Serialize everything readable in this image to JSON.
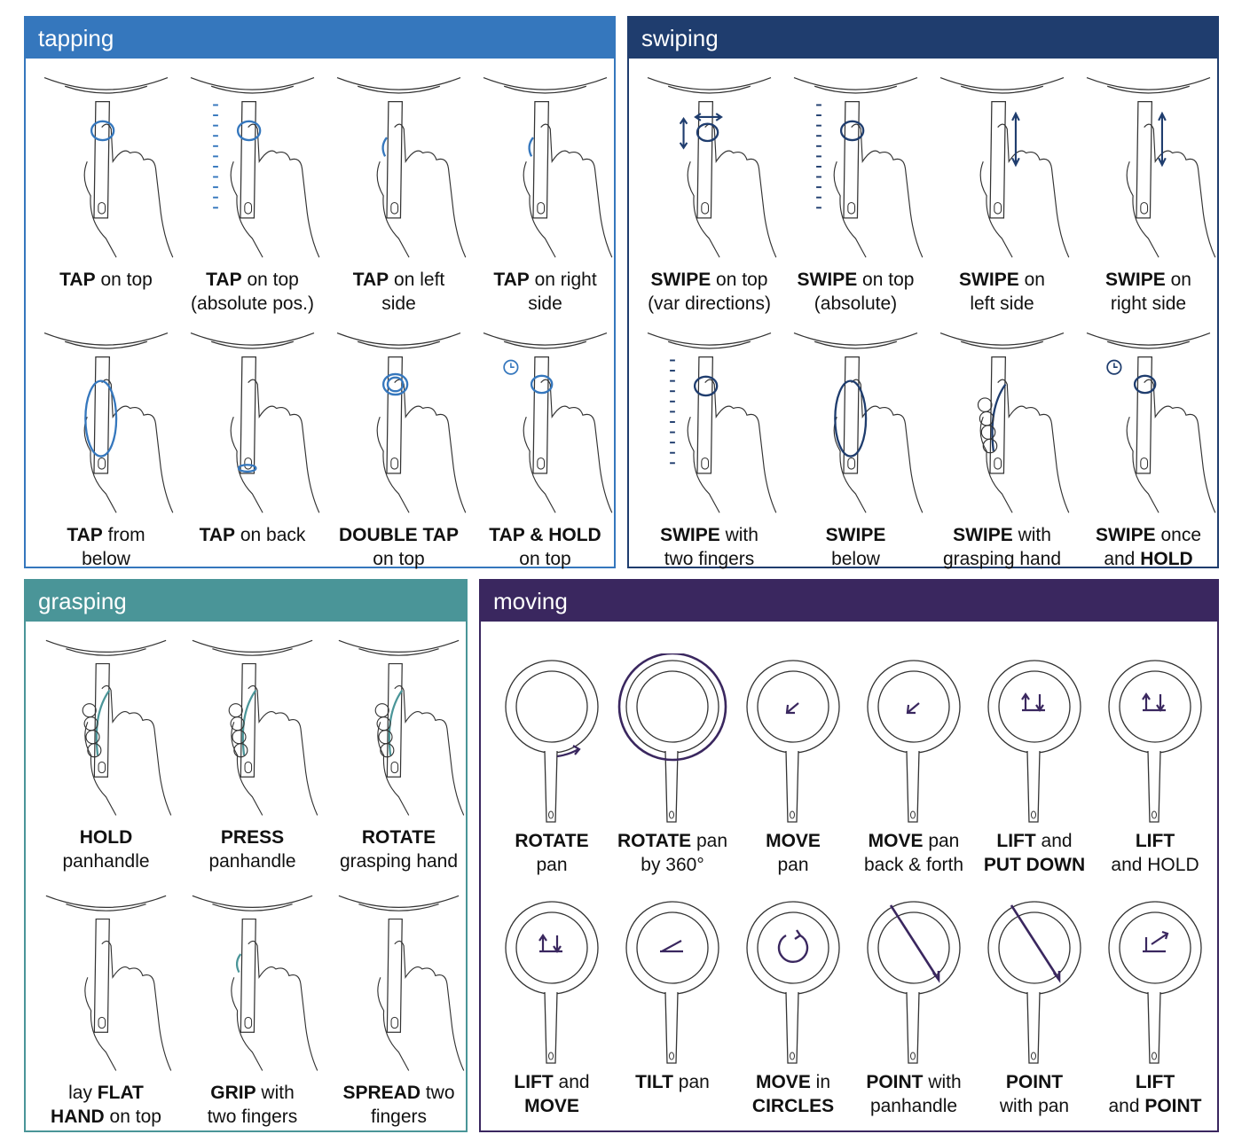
{
  "colors": {
    "tapping": "#3577bd",
    "swiping": "#1f3d6e",
    "grasping": "#4a9598",
    "moving": "#3a275f"
  },
  "tapping": {
    "title": "tapping",
    "items": [
      {
        "icon": "pan-handle-tap-top-icon",
        "b1": "TAP",
        "t1": " on top",
        "b2": "",
        "t2": ""
      },
      {
        "icon": "pan-handle-tap-absolute-icon",
        "b1": "TAP",
        "t1": " on top",
        "b2": "",
        "t2": "(absolute pos.)"
      },
      {
        "icon": "pan-handle-tap-left-icon",
        "b1": "TAP",
        "t1": " on left",
        "b2": "",
        "t2": "side"
      },
      {
        "icon": "pan-handle-tap-right-icon",
        "b1": "TAP",
        "t1": " on right",
        "b2": "",
        "t2": "side"
      },
      {
        "icon": "pan-handle-tap-below-icon",
        "b1": "TAP",
        "t1": " from",
        "b2": "",
        "t2": "below"
      },
      {
        "icon": "pan-handle-tap-back-icon",
        "b1": "TAP",
        "t1": " on back",
        "b2": "",
        "t2": ""
      },
      {
        "icon": "pan-handle-double-tap-icon",
        "b1": "DOUBLE TAP",
        "t1": "",
        "b2": "",
        "t2": "on top"
      },
      {
        "icon": "pan-handle-tap-hold-icon",
        "b1": "TAP & HOLD",
        "t1": "",
        "b2": "",
        "t2": "on top"
      }
    ]
  },
  "swiping": {
    "title": "swiping",
    "items": [
      {
        "icon": "pan-handle-swipe-var-icon",
        "b1": "SWIPE",
        "t1": " on top",
        "b2": "",
        "t2": "(var directions)"
      },
      {
        "icon": "pan-handle-swipe-absolute-icon",
        "b1": "SWIPE",
        "t1": " on top",
        "b2": "",
        "t2": "(absolute)"
      },
      {
        "icon": "pan-handle-swipe-left-icon",
        "b1": "SWIPE",
        "t1": " on",
        "b2": "",
        "t2": "left side"
      },
      {
        "icon": "pan-handle-swipe-right-icon",
        "b1": "SWIPE",
        "t1": " on",
        "b2": "",
        "t2": "right side"
      },
      {
        "icon": "pan-handle-swipe-two-fingers-icon",
        "b1": "SWIPE",
        "t1": " with",
        "b2": "",
        "t2": "two fingers"
      },
      {
        "icon": "pan-handle-swipe-below-icon",
        "b1": "SWIPE",
        "t1": "",
        "b2": "",
        "t2": "below"
      },
      {
        "icon": "pan-handle-swipe-grasp-icon",
        "b1": "SWIPE",
        "t1": " with",
        "b2": "",
        "t2": "grasping hand"
      },
      {
        "icon": "pan-handle-swipe-hold-icon",
        "b1": "SWIPE",
        "t1": " once",
        "b2": "HOLD",
        "t2": "and "
      }
    ]
  },
  "grasping": {
    "title": "grasping",
    "items": [
      {
        "icon": "pan-handle-hold-icon",
        "b1": "HOLD",
        "t1": "",
        "b2": "",
        "t2": "panhandle"
      },
      {
        "icon": "pan-handle-press-icon",
        "b1": "PRESS",
        "t1": "",
        "b2": "",
        "t2": "panhandle"
      },
      {
        "icon": "pan-handle-rotate-grasp-icon",
        "b1": "ROTATE",
        "t1": "",
        "b2": "",
        "t2": "grasping hand"
      },
      {
        "icon": "pan-handle-flat-hand-icon",
        "p1": "lay ",
        "b1": "FLAT",
        "t1": "",
        "b2": "HAND",
        "t2": " on top"
      },
      {
        "icon": "pan-handle-grip-two-icon",
        "b1": "GRIP",
        "t1": " with",
        "b2": "",
        "t2": "two fingers"
      },
      {
        "icon": "pan-handle-spread-icon",
        "b1": "SPREAD",
        "t1": " two",
        "b2": "",
        "t2": "fingers"
      }
    ]
  },
  "moving": {
    "title": "moving",
    "items": [
      {
        "icon": "pan-rotate-icon",
        "b1": "ROTATE",
        "t1": "",
        "b2": "",
        "t2": "pan"
      },
      {
        "icon": "pan-rotate-360-icon",
        "b1": "ROTATE",
        "t1": " pan",
        "b2": "",
        "t2": "by 360°"
      },
      {
        "icon": "pan-move-icon",
        "b1": "MOVE",
        "t1": "",
        "b2": "",
        "t2": "pan"
      },
      {
        "icon": "pan-back-forth-icon",
        "b1": "MOVE",
        "t1": " pan",
        "b2": "",
        "t2": "back & forth"
      },
      {
        "icon": "pan-lift-put-down-icon",
        "b1": "LIFT",
        "t1": " and",
        "b2": "PUT DOWN",
        "t2": ""
      },
      {
        "icon": "pan-lift-hold-icon",
        "b1": "LIFT",
        "t1": "",
        "b2": "",
        "t2": "and HOLD"
      },
      {
        "icon": "pan-lift-move-icon",
        "b1": "LIFT",
        "t1": " and",
        "b2": "MOVE",
        "t2": ""
      },
      {
        "icon": "pan-tilt-icon",
        "b1": "TILT",
        "t1": " pan",
        "b2": "",
        "t2": ""
      },
      {
        "icon": "pan-circles-icon",
        "b1": "MOVE",
        "t1": " in",
        "b2": "CIRCLES",
        "t2": ""
      },
      {
        "icon": "pan-point-handle-icon",
        "b1": "POINT",
        "t1": " with",
        "b2": "",
        "t2": "panhandle"
      },
      {
        "icon": "pan-point-icon",
        "b1": "POINT",
        "t1": "",
        "b2": "",
        "t2": "with pan"
      },
      {
        "icon": "pan-lift-point-icon",
        "b1": "LIFT",
        "t1": "",
        "b2": "POINT",
        "t2": "and "
      }
    ]
  }
}
